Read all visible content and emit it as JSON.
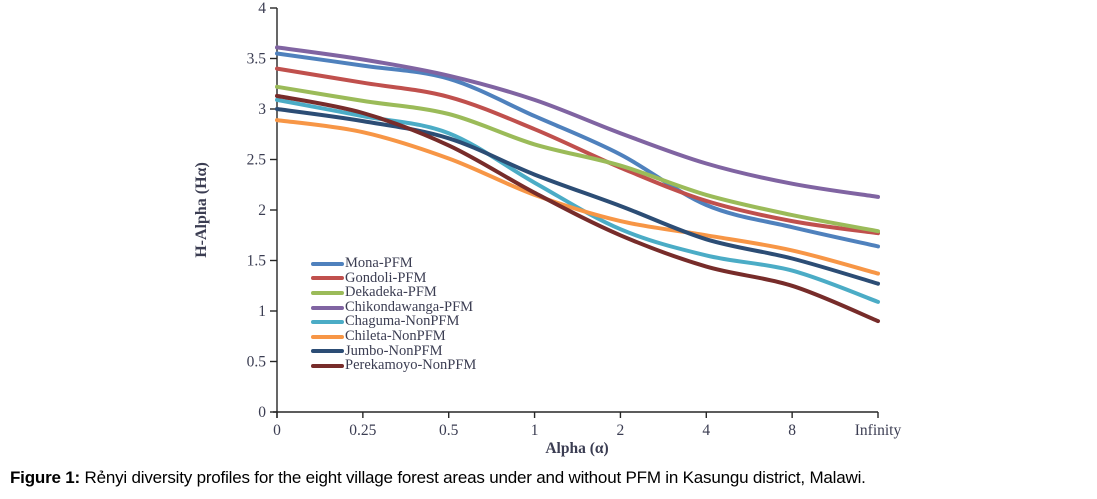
{
  "figure": {
    "label": "Figure 1:",
    "caption": " Rẻnyi diversity profiles for the eight village forest areas under and without PFM in Kasungu district, Malawi."
  },
  "chart_data": {
    "type": "line",
    "title": "",
    "xlabel": "Alpha (α)",
    "ylabel": "H-Alpha (Hα)",
    "categories": [
      "0",
      "0.25",
      "0.5",
      "1",
      "2",
      "4",
      "8",
      "Infinity"
    ],
    "y_ticks": [
      "4",
      "3.5",
      "3",
      "2.5",
      "2",
      "1.5",
      "1",
      "0.5",
      "0"
    ],
    "ylim": [
      0,
      4
    ],
    "grid": false,
    "legend_position": "inside-left",
    "line_width": 4,
    "smooth": true,
    "series": [
      {
        "name": "Mona-PFM",
        "color": "#4F81BD",
        "values": [
          3.55,
          3.43,
          3.3,
          2.93,
          2.55,
          2.05,
          1.83,
          1.64
        ]
      },
      {
        "name": "Gondoli-PFM",
        "color": "#C0504D",
        "values": [
          3.4,
          3.26,
          3.12,
          2.8,
          2.42,
          2.09,
          1.89,
          1.77
        ]
      },
      {
        "name": "Dekadeka-PFM",
        "color": "#9BBB59",
        "values": [
          3.22,
          3.08,
          2.95,
          2.65,
          2.44,
          2.15,
          1.95,
          1.79
        ]
      },
      {
        "name": "Chikondawanga-PFM",
        "color": "#8064A2",
        "values": [
          3.61,
          3.49,
          3.33,
          3.09,
          2.76,
          2.46,
          2.26,
          2.13
        ]
      },
      {
        "name": "Chaguma-NonPFM",
        "color": "#4BACC6",
        "values": [
          3.09,
          2.93,
          2.76,
          2.27,
          1.81,
          1.55,
          1.4,
          1.09
        ]
      },
      {
        "name": "Chileta-NonPFM",
        "color": "#F79646",
        "values": [
          2.89,
          2.77,
          2.51,
          2.15,
          1.89,
          1.75,
          1.6,
          1.37
        ]
      },
      {
        "name": "Jumbo-NonPFM",
        "color": "#2C4D75",
        "values": [
          3.0,
          2.88,
          2.71,
          2.35,
          2.04,
          1.71,
          1.52,
          1.27
        ]
      },
      {
        "name": "Perekamoyo-NonPFM",
        "color": "#772C2A",
        "values": [
          3.13,
          2.96,
          2.64,
          2.17,
          1.75,
          1.44,
          1.25,
          0.9
        ]
      }
    ]
  },
  "colors": {
    "axis": "#262626",
    "tick_text": "#3b3d52",
    "caption_text": "#000000",
    "background": "#ffffff"
  }
}
